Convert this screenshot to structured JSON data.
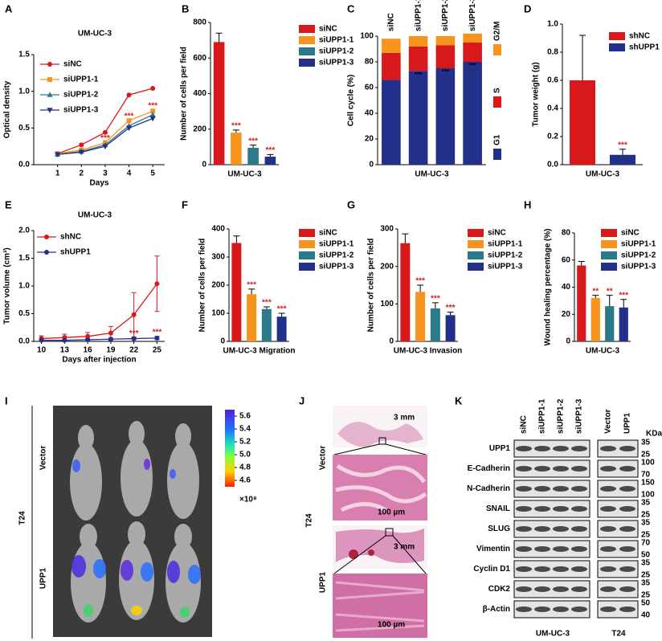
{
  "chart_data": [
    {
      "type": "line",
      "panel": "A",
      "title": "UM-UC-3",
      "xlabel": "Days",
      "ylabel": "Optical density",
      "x": [
        1,
        2,
        3,
        4,
        5
      ],
      "xlim": [
        0,
        5.5
      ],
      "xticks": [
        1,
        2,
        3,
        4,
        5
      ],
      "ylim": [
        0,
        1.5
      ],
      "yticks": [
        {
          "value": 0,
          "label": "0.0"
        },
        {
          "value": 0.5,
          "label": "0.5"
        },
        {
          "value": 1,
          "label": "1.0"
        },
        {
          "value": 1.5,
          "label": "1.5"
        }
      ],
      "series": [
        {
          "name": "siNC",
          "color": "#d7191c",
          "marker": "circle",
          "values": [
            0.15,
            0.27,
            0.44,
            0.95,
            1.04
          ]
        },
        {
          "name": "siUPP1-1",
          "color": "#f7941d",
          "marker": "square",
          "values": [
            0.15,
            0.2,
            0.3,
            0.6,
            0.73
          ]
        },
        {
          "name": "siUPP1-2",
          "color": "#2b7a8c",
          "marker": "triangle",
          "values": [
            0.14,
            0.18,
            0.27,
            0.53,
            0.68
          ]
        },
        {
          "name": "siUPP1-3",
          "color": "#23308a",
          "marker": "triangle-down",
          "values": [
            0.14,
            0.17,
            0.25,
            0.5,
            0.63
          ]
        }
      ],
      "annotations": [
        {
          "text": "***",
          "x": 3,
          "y": 0.36
        },
        {
          "text": "***",
          "x": 4,
          "y": 0.66
        },
        {
          "text": "***",
          "x": 5,
          "y": 0.8
        }
      ]
    },
    {
      "type": "bar",
      "panel": "B",
      "ylabel": "Number of cells per field",
      "xlabel": "UM-UC-3",
      "categories": [
        "siNC",
        "siUPP1-1",
        "siUPP1-2",
        "siUPP1-3"
      ],
      "colors": [
        "#d7191c",
        "#f7941d",
        "#2b7a8c",
        "#23308a"
      ],
      "values": [
        690,
        180,
        95,
        45
      ],
      "errors": [
        50,
        15,
        15,
        12
      ],
      "labels": [
        null,
        "***",
        "***",
        "***"
      ],
      "ylim": [
        0,
        800
      ],
      "yticks": [
        0,
        200,
        400,
        600,
        800
      ]
    },
    {
      "type": "stacked_bar",
      "panel": "C",
      "ylabel": "Cell cycle (%)",
      "xlabel": "UM-UC-3",
      "categories": [
        "siNC",
        "siUPP1-1",
        "siUPP1-2",
        "siUPP1-3"
      ],
      "series": [
        {
          "name": "G1",
          "color": "#23308a",
          "values": [
            66,
            73,
            75,
            80
          ]
        },
        {
          "name": "S",
          "color": "#d7191c",
          "values": [
            21,
            19,
            18,
            15
          ]
        },
        {
          "name": "G2/M",
          "color": "#f7941d",
          "values": [
            11,
            8,
            7,
            7
          ]
        }
      ],
      "labels": [
        null,
        "***",
        "***",
        "***"
      ],
      "ylim": [
        0,
        100
      ],
      "yticks": [
        0,
        20,
        40,
        60,
        80,
        100
      ]
    },
    {
      "type": "bar",
      "panel": "D",
      "ylabel": "Tumor weight (g)",
      "xlabel": "UM-UC-3",
      "categories": [
        "shNC",
        "shUPP1"
      ],
      "colors": [
        "#d7191c",
        "#23308a"
      ],
      "values": [
        0.6,
        0.07
      ],
      "errors": [
        0.32,
        0.04
      ],
      "labels": [
        null,
        "***"
      ],
      "ylim": [
        0,
        1
      ],
      "yticks": [
        {
          "value": 0,
          "label": "0.0"
        },
        {
          "value": 0.2,
          "label": "0.2"
        },
        {
          "value": 0.4,
          "label": "0.4"
        },
        {
          "value": 0.6,
          "label": "0.6"
        },
        {
          "value": 0.8,
          "label": "0.8"
        },
        {
          "value": 1,
          "label": "1.0"
        }
      ]
    },
    {
      "type": "line",
      "panel": "E",
      "title": "UM-UC-3",
      "xlabel": "Days after injection",
      "ylabel": "Tumor volume (cm³)",
      "x": [
        10,
        13,
        16,
        19,
        22,
        25
      ],
      "xlim": [
        9,
        26
      ],
      "xticks": [
        10,
        13,
        16,
        19,
        22,
        25
      ],
      "ylim": [
        0,
        2
      ],
      "yticks": [
        {
          "value": 0,
          "label": "0.0"
        },
        {
          "value": 0.5,
          "label": "0.5"
        },
        {
          "value": 1,
          "label": "1.0"
        },
        {
          "value": 1.5,
          "label": "1.5"
        },
        {
          "value": 2,
          "label": "2.0"
        }
      ],
      "series": [
        {
          "name": "shNC",
          "color": "#d7191c",
          "marker": "circle",
          "values": [
            0.05,
            0.07,
            0.09,
            0.15,
            0.48,
            1.04
          ],
          "errors": [
            0.05,
            0.06,
            0.07,
            0.12,
            0.4,
            0.5
          ]
        },
        {
          "name": "shUPP1",
          "color": "#23308a",
          "marker": "circle",
          "values": [
            0.02,
            0.02,
            0.03,
            0.04,
            0.05,
            0.06
          ],
          "errors": [
            0.01,
            0.01,
            0.02,
            0.02,
            0.02,
            0.03
          ]
        }
      ],
      "annotations": [
        {
          "text": "***",
          "x": 22,
          "y": 0.14
        },
        {
          "text": "***",
          "x": 25,
          "y": 0.16
        }
      ]
    },
    {
      "type": "bar",
      "panel": "F",
      "ylabel": "Number of cells per field",
      "xlabel": "UM-UC-3 Migration",
      "categories": [
        "siNC",
        "siUPP1-1",
        "siUPP1-2",
        "siUPP1-3"
      ],
      "colors": [
        "#d7191c",
        "#f7941d",
        "#2b7a8c",
        "#23308a"
      ],
      "values": [
        350,
        168,
        115,
        88
      ],
      "errors": [
        25,
        18,
        8,
        12
      ],
      "labels": [
        null,
        "***",
        "***",
        "***"
      ],
      "ylim": [
        0,
        400
      ],
      "yticks": [
        0,
        100,
        200,
        300,
        400
      ]
    },
    {
      "type": "bar",
      "panel": "G",
      "ylabel": "Number of cells per field",
      "xlabel": "UM-UC-3 Invasion",
      "categories": [
        "siNC",
        "siUPP1-1",
        "siUPP1-2",
        "siUPP1-3"
      ],
      "colors": [
        "#d7191c",
        "#f7941d",
        "#2b7a8c",
        "#23308a"
      ],
      "values": [
        262,
        132,
        88,
        70
      ],
      "errors": [
        25,
        18,
        15,
        8
      ],
      "labels": [
        null,
        "***",
        "***",
        "***"
      ],
      "ylim": [
        0,
        300
      ],
      "yticks": [
        0,
        100,
        200,
        300
      ]
    },
    {
      "type": "bar",
      "panel": "H",
      "ylabel": "Wound healing percentage (%)",
      "xlabel": "UM-UC-3",
      "categories": [
        "siNC",
        "siUPP1-1",
        "siUPP1-2",
        "siUPP1-3"
      ],
      "colors": [
        "#d7191c",
        "#f7941d",
        "#2b7a8c",
        "#23308a"
      ],
      "values": [
        56,
        32,
        26,
        25
      ],
      "errors": [
        3,
        2,
        8,
        6
      ],
      "labels": [
        null,
        "**",
        "**",
        "***"
      ],
      "ylim": [
        0,
        80
      ],
      "yticks": [
        0,
        20,
        40,
        60,
        80
      ]
    }
  ],
  "images": {
    "I": {
      "panel": "I",
      "group": "T24",
      "rows": [
        "Vector",
        "UPP1"
      ],
      "colorbar": {
        "lim": [
          4.5,
          5.7
        ],
        "ticks": [
          5.6,
          5.4,
          5.2,
          {
            "value": 5,
            "label": "5.0"
          },
          4.8,
          4.6
        ],
        "unit": "×10⁸"
      }
    },
    "J": {
      "panel": "J",
      "group": "T24",
      "rows": [
        "Vector",
        "UPP1"
      ],
      "scales": [
        "3 mm",
        "100 µm",
        "3 mm",
        "100 µm"
      ]
    },
    "K": {
      "panel": "K",
      "lanes": [
        "siNC",
        "siUPP1-1",
        "siUPP1-2",
        "siUPP1-3",
        "Vector",
        "UPP1"
      ],
      "unit": "KDa",
      "proteins": [
        {
          "name": "UPP1",
          "kda": [
            "35",
            "25"
          ]
        },
        {
          "name": "E-Cadherin",
          "kda": [
            "100",
            "70"
          ]
        },
        {
          "name": "N-Cadherin",
          "kda": [
            "150",
            "100"
          ]
        },
        {
          "name": "SNAIL",
          "kda": [
            "35",
            "25"
          ]
        },
        {
          "name": "SLUG",
          "kda": [
            "35",
            "25"
          ]
        },
        {
          "name": "Vimentin",
          "kda": [
            "70",
            "50"
          ]
        },
        {
          "name": "Cyclin D1",
          "kda": [
            "35",
            "25"
          ]
        },
        {
          "name": "CDK2",
          "kda": [
            "35",
            "25"
          ]
        },
        {
          "name": "β-Actin",
          "kda": [
            "50",
            "40"
          ]
        }
      ],
      "groups": [
        "UM-UC-3",
        "T24"
      ]
    }
  }
}
